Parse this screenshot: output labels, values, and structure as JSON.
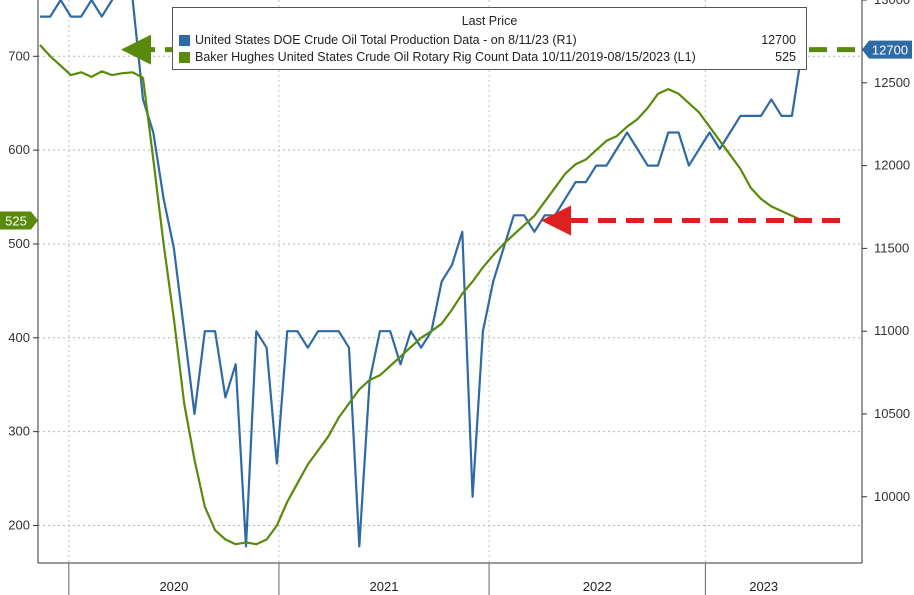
{
  "chart_data": {
    "type": "line",
    "legend_title": "Last Price",
    "x_labels": [
      "2020",
      "2021",
      "2022",
      "2023"
    ],
    "left_axis": {
      "ticks": [
        200,
        300,
        400,
        500,
        600,
        700
      ],
      "range": [
        160,
        760
      ]
    },
    "right_axis": {
      "ticks": [
        10000,
        10500,
        11000,
        11500,
        12000,
        12500,
        13000
      ],
      "range": [
        9600,
        13000
      ]
    },
    "series": [
      {
        "name": "United States DOE Crude Oil Total Production Data -  on 8/11/23  (R1)",
        "legend_value": "12700",
        "last_value_tag": "12700",
        "color": "#2e6aa3",
        "axis": "right",
        "t": [
          0.0,
          0.05,
          0.1,
          0.15,
          0.2,
          0.25,
          0.3,
          0.35,
          0.4,
          0.45,
          0.5,
          0.55,
          0.6,
          0.65,
          0.7,
          0.75,
          0.8,
          0.85,
          0.9,
          0.95,
          1.0,
          1.05,
          1.1,
          1.15,
          1.2,
          1.25,
          1.3,
          1.35,
          1.4,
          1.45,
          1.5,
          1.55,
          1.6,
          1.65,
          1.7,
          1.75,
          1.8,
          1.85,
          1.9,
          1.95,
          2.0,
          2.05,
          2.1,
          2.15,
          2.2,
          2.25,
          2.3,
          2.35,
          2.4,
          2.45,
          2.5,
          2.55,
          2.6,
          2.65,
          2.7,
          2.75,
          2.8,
          2.85,
          2.9,
          2.95,
          3.0,
          3.05,
          3.1,
          3.15,
          3.2,
          3.25,
          3.3,
          3.35,
          3.4,
          3.45,
          3.5,
          3.55,
          3.6,
          3.65,
          3.7
        ],
        "values": [
          12900,
          12900,
          13000,
          12900,
          12900,
          13000,
          12900,
          13000,
          13100,
          13000,
          12400,
          12200,
          11800,
          11500,
          11000,
          10500,
          11000,
          11000,
          10600,
          10800,
          9700,
          11000,
          10900,
          10200,
          11000,
          11000,
          10900,
          11000,
          11000,
          11000,
          10900,
          9700,
          10700,
          11000,
          11000,
          10800,
          11000,
          10900,
          11000,
          11300,
          11400,
          11600,
          10000,
          11000,
          11300,
          11500,
          11700,
          11700,
          11600,
          11700,
          11700,
          11800,
          11900,
          11900,
          12000,
          12000,
          12100,
          12200,
          12100,
          12000,
          12000,
          12200,
          12200,
          12000,
          12100,
          12200,
          12100,
          12200,
          12300,
          12300,
          12300,
          12400,
          12300,
          12300,
          12700
        ]
      },
      {
        "name": "Baker Hughes United States Crude Oil Rotary Rig Count Data 10/11/2019-08/15/2023  (L1)",
        "legend_value": "525",
        "last_value_tag": "525",
        "color": "#5a8a0c",
        "axis": "left",
        "t": [
          0.0,
          0.05,
          0.1,
          0.15,
          0.2,
          0.25,
          0.3,
          0.35,
          0.4,
          0.45,
          0.5,
          0.55,
          0.6,
          0.65,
          0.7,
          0.75,
          0.8,
          0.85,
          0.9,
          0.95,
          1.0,
          1.05,
          1.1,
          1.15,
          1.2,
          1.25,
          1.3,
          1.35,
          1.4,
          1.45,
          1.5,
          1.55,
          1.6,
          1.65,
          1.7,
          1.75,
          1.8,
          1.85,
          1.9,
          1.95,
          2.0,
          2.05,
          2.1,
          2.15,
          2.2,
          2.25,
          2.3,
          2.35,
          2.4,
          2.45,
          2.5,
          2.55,
          2.6,
          2.65,
          2.7,
          2.75,
          2.8,
          2.85,
          2.9,
          2.95,
          3.0,
          3.05,
          3.1,
          3.15,
          3.2,
          3.25,
          3.3,
          3.35,
          3.4,
          3.45,
          3.5,
          3.55,
          3.6,
          3.65,
          3.7
        ],
        "values": [
          712,
          700,
          690,
          680,
          683,
          678,
          684,
          680,
          682,
          683,
          677,
          590,
          500,
          420,
          330,
          270,
          220,
          195,
          185,
          180,
          182,
          180,
          185,
          200,
          225,
          245,
          265,
          280,
          295,
          315,
          330,
          345,
          355,
          360,
          370,
          380,
          390,
          400,
          407,
          415,
          430,
          447,
          460,
          475,
          488,
          500,
          510,
          520,
          530,
          545,
          560,
          575,
          585,
          590,
          600,
          610,
          615,
          625,
          633,
          645,
          660,
          665,
          660,
          650,
          640,
          625,
          610,
          595,
          580,
          560,
          548,
          540,
          535,
          530,
          525
        ]
      }
    ],
    "annotations": [
      {
        "type": "dashed-arrow",
        "color": "#5a8a0c",
        "value": 12700,
        "axis": "right"
      },
      {
        "type": "dashed-arrow",
        "color": "#e02020",
        "value": 525,
        "axis": "left"
      }
    ]
  }
}
